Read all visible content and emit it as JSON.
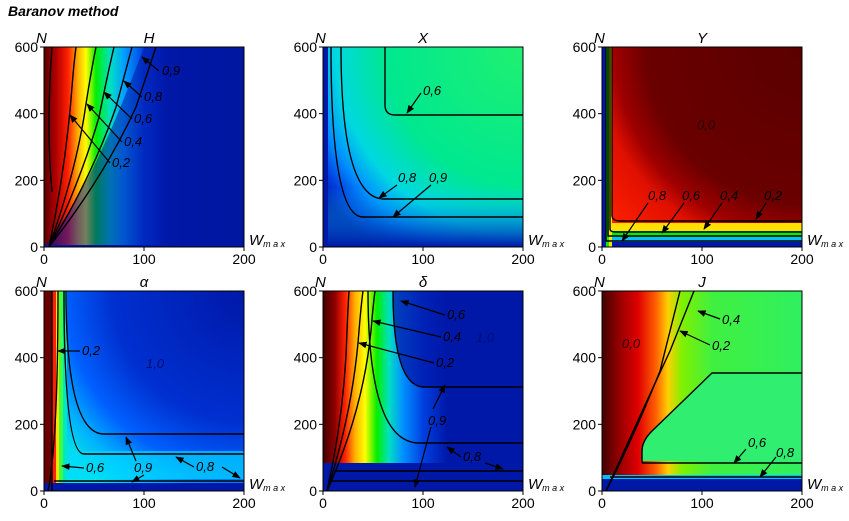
{
  "figure_title": "Baranov method",
  "chart_data": [
    {
      "type": "heatmap",
      "title": "H",
      "ylabel": "N",
      "xlabel_base": "W",
      "xlabel_sub": "max",
      "xlim": [
        0,
        200
      ],
      "ylim": [
        0,
        600
      ],
      "x_ticks": [
        0,
        100,
        200
      ],
      "y_ticks": [
        0,
        200,
        400,
        600
      ],
      "contour_labels": [
        "0,9",
        "0,8",
        "0,6",
        "0,4",
        "0,2"
      ],
      "colors": {
        "high": "#8b0000",
        "mid": "#00ee00",
        "low": "#0018a8"
      }
    },
    {
      "type": "heatmap",
      "title": "X",
      "ylabel": "N",
      "xlabel_base": "W",
      "xlabel_sub": "max",
      "xlim": [
        0,
        200
      ],
      "ylim": [
        0,
        600
      ],
      "x_ticks": [
        0,
        100,
        200
      ],
      "y_ticks": [
        0,
        200,
        400,
        600
      ],
      "contour_labels": [
        "0,6",
        "0,8",
        "0,9"
      ]
    },
    {
      "type": "heatmap",
      "title": "Y",
      "ylabel": "N",
      "xlabel_base": "W",
      "xlabel_sub": "max",
      "xlim": [
        0,
        200
      ],
      "ylim": [
        0,
        600
      ],
      "x_ticks": [
        0,
        100,
        200
      ],
      "y_ticks": [
        0,
        200,
        400,
        600
      ],
      "contour_labels": [
        "0,0",
        "0,8",
        "0,6",
        "0,4",
        "0,2"
      ]
    },
    {
      "type": "heatmap",
      "title": "α",
      "ylabel": "N",
      "xlabel_base": "W",
      "xlabel_sub": "max",
      "xlim": [
        0,
        200
      ],
      "ylim": [
        0,
        600
      ],
      "x_ticks": [
        0,
        100,
        200
      ],
      "y_ticks": [
        0,
        200,
        400,
        600
      ],
      "contour_labels": [
        "0,2",
        "1,0",
        "0,6",
        "0,9",
        "0,8"
      ]
    },
    {
      "type": "heatmap",
      "title": "δ",
      "ylabel": "N",
      "xlabel_base": "W",
      "xlabel_sub": "max",
      "xlim": [
        0,
        200
      ],
      "ylim": [
        0,
        600
      ],
      "x_ticks": [
        0,
        100,
        200
      ],
      "y_ticks": [
        0,
        200,
        400,
        600
      ],
      "contour_labels": [
        "0,6",
        "0,4",
        "1,0",
        "0,2",
        "0,9",
        "0,8"
      ]
    },
    {
      "type": "heatmap",
      "title": "J",
      "ylabel": "N",
      "xlabel_base": "W",
      "xlabel_sub": "max",
      "xlim": [
        0,
        200
      ],
      "ylim": [
        0,
        600
      ],
      "x_ticks": [
        0,
        100,
        200
      ],
      "y_ticks": [
        0,
        200,
        400,
        600
      ],
      "contour_labels": [
        "0,4",
        "0,0",
        "0,2",
        "0,6",
        "0,8"
      ]
    }
  ]
}
